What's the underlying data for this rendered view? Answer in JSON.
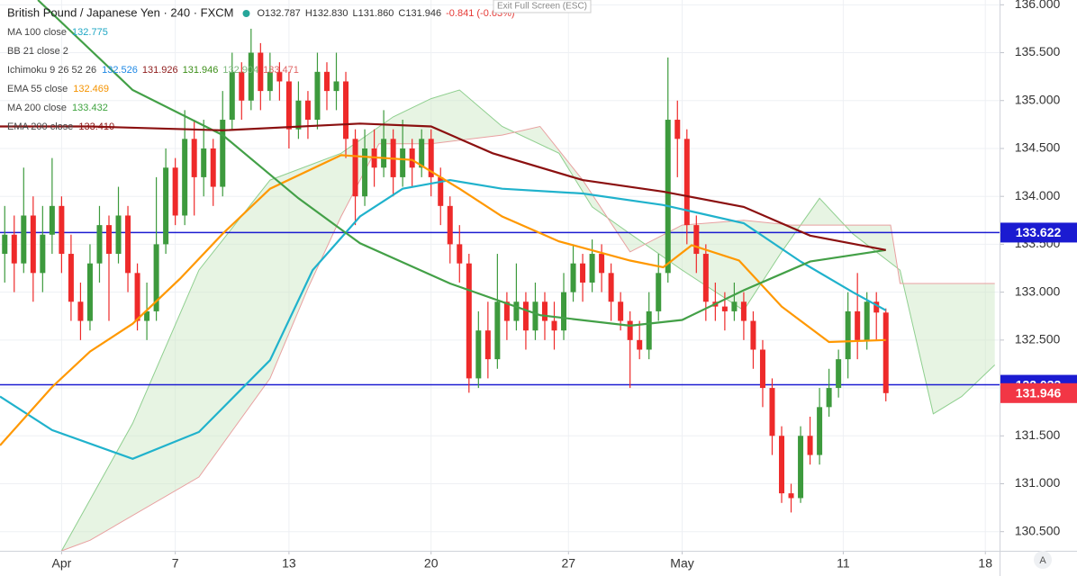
{
  "chart_data": {
    "type": "candlestick",
    "header": {
      "title": "British Pound / Japanese Yen · 240 · FXCM",
      "ohlc": [
        "O132.787",
        "H132.830",
        "L131.860",
        "C131.946"
      ],
      "change": "-0.841 (-0.63%)",
      "exit": "Exit Full Screen (ESC)"
    },
    "indicators": [
      {
        "label": "MA 100 close",
        "values": [
          {
            "text": "132.775",
            "color": "#1fa7c4"
          }
        ]
      },
      {
        "label": "BB 21 close 2",
        "values": []
      },
      {
        "label": "Ichimoku 9 26 52 26",
        "values": [
          {
            "text": "132.526",
            "color": "#1e88e5"
          },
          {
            "text": "131.926",
            "color": "#8e1b1b"
          },
          {
            "text": "131.946",
            "color": "#3d8f1a"
          },
          {
            "text": "132.904",
            "color": "#7cb87c"
          },
          {
            "text": "133.471",
            "color": "#e06666"
          }
        ]
      },
      {
        "label": "EMA 55 close",
        "values": [
          {
            "text": "132.469",
            "color": "#f59300"
          }
        ]
      },
      {
        "label": "MA 200 close",
        "values": [
          {
            "text": "133.432",
            "color": "#3fa33f"
          }
        ]
      },
      {
        "label": "EMA 200 close",
        "values": [
          {
            "text": "133.410",
            "color": "#8b1010"
          }
        ]
      }
    ],
    "xlim": [
      0,
      211
    ],
    "ylim": [
      130.3,
      136.05
    ],
    "xticks": [
      {
        "value": 13,
        "label": "Apr"
      },
      {
        "value": 37,
        "label": "7"
      },
      {
        "value": 61,
        "label": "13"
      },
      {
        "value": 91,
        "label": "20"
      },
      {
        "value": 120,
        "label": "27"
      },
      {
        "value": 144,
        "label": "May"
      },
      {
        "value": 178,
        "label": "11"
      },
      {
        "value": 208,
        "label": "18"
      }
    ],
    "yticks": [
      {
        "value": 130.5,
        "label": "130.500"
      },
      {
        "value": 131,
        "label": "131.000"
      },
      {
        "value": 131.5,
        "label": "131.500"
      },
      {
        "value": 132,
        "label": "132.000"
      },
      {
        "value": 132.5,
        "label": "132.500"
      },
      {
        "value": 133,
        "label": "133.000"
      },
      {
        "value": 133.5,
        "label": "133.500"
      },
      {
        "value": 134,
        "label": "134.000"
      },
      {
        "value": 134.5,
        "label": "134.500"
      },
      {
        "value": 135,
        "label": "135.000"
      },
      {
        "value": 135.5,
        "label": "135.500"
      },
      {
        "value": 136,
        "label": "136.000"
      }
    ],
    "grid": true,
    "up_color": "#3d9a3d",
    "down_color": "#ee2a2a",
    "candles": {
      "x": [
        1,
        3,
        5,
        7,
        9,
        11,
        13,
        15,
        17,
        19,
        21,
        23,
        25,
        27,
        29,
        31,
        33,
        35,
        37,
        39,
        41,
        43,
        45,
        47,
        49,
        51,
        53,
        55,
        57,
        59,
        61,
        63,
        65,
        67,
        69,
        71,
        73,
        75,
        77,
        79,
        81,
        83,
        85,
        87,
        89,
        91,
        93,
        95,
        97,
        99,
        101,
        103,
        105,
        107,
        109,
        111,
        113,
        115,
        117,
        119,
        121,
        123,
        125,
        127,
        129,
        131,
        133,
        135,
        137,
        139,
        141,
        143,
        145,
        147,
        149,
        151,
        153,
        155,
        157,
        159,
        161,
        163,
        165,
        167,
        169,
        171,
        173,
        175,
        177,
        179,
        181,
        183,
        185,
        187
      ],
      "ohlc": [
        [
          133.4,
          133.9,
          133.1,
          133.6
        ],
        [
          133.6,
          133.8,
          133.0,
          133.3
        ],
        [
          133.3,
          134.3,
          133.2,
          133.8
        ],
        [
          133.8,
          134.0,
          132.9,
          133.2
        ],
        [
          133.2,
          133.9,
          133.0,
          133.6
        ],
        [
          133.6,
          134.4,
          133.4,
          133.9
        ],
        [
          133.9,
          134.0,
          133.2,
          133.4
        ],
        [
          133.4,
          133.6,
          132.7,
          132.9
        ],
        [
          132.9,
          133.1,
          132.5,
          132.7
        ],
        [
          132.7,
          133.5,
          132.6,
          133.3
        ],
        [
          133.3,
          133.9,
          133.1,
          133.7
        ],
        [
          133.7,
          133.8,
          132.7,
          133.4
        ],
        [
          133.4,
          134.1,
          133.3,
          133.8
        ],
        [
          133.8,
          133.9,
          133.0,
          133.2
        ],
        [
          133.2,
          133.3,
          132.6,
          132.7
        ],
        [
          132.7,
          133.1,
          132.5,
          132.8
        ],
        [
          132.8,
          134.2,
          132.7,
          133.5
        ],
        [
          133.5,
          134.5,
          133.4,
          134.3
        ],
        [
          134.3,
          134.4,
          133.7,
          133.8
        ],
        [
          133.8,
          134.9,
          133.7,
          134.6
        ],
        [
          134.6,
          134.8,
          133.8,
          134.2
        ],
        [
          134.2,
          134.8,
          134.0,
          134.5
        ],
        [
          134.5,
          134.6,
          133.9,
          134.1
        ],
        [
          134.1,
          135.1,
          134.0,
          134.8
        ],
        [
          134.8,
          135.5,
          134.7,
          135.3
        ],
        [
          135.3,
          135.4,
          134.8,
          135.0
        ],
        [
          135.0,
          135.75,
          134.9,
          135.5
        ],
        [
          135.5,
          135.6,
          134.9,
          135.1
        ],
        [
          135.1,
          135.5,
          135.0,
          135.3
        ],
        [
          135.3,
          135.4,
          135.0,
          135.2
        ],
        [
          135.2,
          135.3,
          134.5,
          134.7
        ],
        [
          134.7,
          135.2,
          134.6,
          135.0
        ],
        [
          135.0,
          135.1,
          134.6,
          134.8
        ],
        [
          134.8,
          135.5,
          134.7,
          135.3
        ],
        [
          135.3,
          135.4,
          134.9,
          135.1
        ],
        [
          135.1,
          135.5,
          134.9,
          135.2
        ],
        [
          135.2,
          135.3,
          134.4,
          134.6
        ],
        [
          134.6,
          134.7,
          133.7,
          134.0
        ],
        [
          134.0,
          134.7,
          133.9,
          134.5
        ],
        [
          134.5,
          134.7,
          134.1,
          134.3
        ],
        [
          134.3,
          134.9,
          134.2,
          134.6
        ],
        [
          134.6,
          134.7,
          134.0,
          134.2
        ],
        [
          134.2,
          134.8,
          134.1,
          134.5
        ],
        [
          134.5,
          134.6,
          134.1,
          134.3
        ],
        [
          134.3,
          134.7,
          134.2,
          134.6
        ],
        [
          134.6,
          134.7,
          134.0,
          134.2
        ],
        [
          134.2,
          134.3,
          133.7,
          133.9
        ],
        [
          133.9,
          134.0,
          133.3,
          133.5
        ],
        [
          133.5,
          133.7,
          133.1,
          133.3
        ],
        [
          133.3,
          133.4,
          131.95,
          132.1
        ],
        [
          132.1,
          132.8,
          132.0,
          132.6
        ],
        [
          132.6,
          132.9,
          132.1,
          132.3
        ],
        [
          132.3,
          133.4,
          132.2,
          132.9
        ],
        [
          132.9,
          133.0,
          132.5,
          132.7
        ],
        [
          132.7,
          133.3,
          132.6,
          132.9
        ],
        [
          132.9,
          133.0,
          132.4,
          132.6
        ],
        [
          132.6,
          133.1,
          132.5,
          132.9
        ],
        [
          132.9,
          133.0,
          132.5,
          132.7
        ],
        [
          132.7,
          132.9,
          132.4,
          132.6
        ],
        [
          132.6,
          133.2,
          132.5,
          133.0
        ],
        [
          133.0,
          133.5,
          132.9,
          133.3
        ],
        [
          133.3,
          133.4,
          132.9,
          133.1
        ],
        [
          133.1,
          133.55,
          133.0,
          133.4
        ],
        [
          133.4,
          133.5,
          133.0,
          133.2
        ],
        [
          133.2,
          133.3,
          132.7,
          132.9
        ],
        [
          132.9,
          133.0,
          132.6,
          132.7
        ],
        [
          132.7,
          132.8,
          132.0,
          132.5
        ],
        [
          132.5,
          132.7,
          132.3,
          132.4
        ],
        [
          132.4,
          133.0,
          132.3,
          132.8
        ],
        [
          132.8,
          133.4,
          132.7,
          133.2
        ],
        [
          133.2,
          135.45,
          133.1,
          134.8
        ],
        [
          134.8,
          135.0,
          134.2,
          134.6
        ],
        [
          134.6,
          134.7,
          133.5,
          133.7
        ],
        [
          133.7,
          133.8,
          133.2,
          133.4
        ],
        [
          133.4,
          133.5,
          132.7,
          132.9
        ],
        [
          132.9,
          133.1,
          132.7,
          132.85
        ],
        [
          132.85,
          133.0,
          132.6,
          132.8
        ],
        [
          132.8,
          133.1,
          132.7,
          132.9
        ],
        [
          132.9,
          133.0,
          132.5,
          132.7
        ],
        [
          132.7,
          132.8,
          132.2,
          132.4
        ],
        [
          132.4,
          132.5,
          131.8,
          132.0
        ],
        [
          132.0,
          132.1,
          131.3,
          131.5
        ],
        [
          131.5,
          131.6,
          130.8,
          130.9
        ],
        [
          130.9,
          131.0,
          130.7,
          130.85
        ],
        [
          130.85,
          131.6,
          130.8,
          131.5
        ],
        [
          131.5,
          131.7,
          131.2,
          131.3
        ],
        [
          131.3,
          132.0,
          131.2,
          131.8
        ],
        [
          131.8,
          132.2,
          131.7,
          132.0
        ],
        [
          132.0,
          132.4,
          131.9,
          132.3
        ],
        [
          132.3,
          133.0,
          132.1,
          132.8
        ],
        [
          132.8,
          133.2,
          132.3,
          132.5
        ],
        [
          132.5,
          133.0,
          132.4,
          132.9
        ],
        [
          132.9,
          133.0,
          132.5,
          132.787
        ],
        [
          132.787,
          132.83,
          131.86,
          131.946
        ]
      ]
    },
    "lines": [
      {
        "name": "MA 100 close",
        "color": "#20b2cc",
        "x": [
          0,
          11,
          28,
          42,
          57,
          66,
          76,
          85,
          95,
          106,
          123,
          140,
          157,
          169,
          180,
          187
        ],
        "values": [
          131.91,
          131.56,
          131.26,
          131.54,
          132.29,
          133.23,
          133.79,
          134.08,
          134.17,
          134.08,
          134.03,
          133.91,
          133.72,
          133.32,
          133.0,
          132.81
        ]
      },
      {
        "name": "EMA 55 close",
        "color": "#ff9800",
        "x": [
          0,
          11,
          19,
          28,
          38,
          47,
          57,
          72,
          87,
          97,
          106,
          118,
          133,
          140,
          146,
          156,
          165,
          175,
          187
        ],
        "values": [
          131.4,
          132.01,
          132.38,
          132.67,
          133.14,
          133.61,
          134.08,
          134.43,
          134.38,
          134.08,
          133.79,
          133.53,
          133.33,
          133.26,
          133.49,
          133.33,
          132.85,
          132.48,
          132.5
        ]
      },
      {
        "name": "MA 200 close",
        "color": "#43a047",
        "x": [
          8,
          28,
          47,
          63,
          76,
          95,
          114,
          133,
          144,
          157,
          171,
          187
        ],
        "values": [
          136.05,
          135.11,
          134.64,
          133.98,
          133.51,
          133.09,
          132.76,
          132.65,
          132.71,
          133.02,
          133.32,
          133.44
        ]
      },
      {
        "name": "EMA 200 close",
        "color": "#8b1010",
        "x": [
          0,
          19,
          47,
          76,
          91,
          104,
          123,
          140,
          157,
          171,
          187
        ],
        "values": [
          134.73,
          134.73,
          134.69,
          134.76,
          134.73,
          134.45,
          134.17,
          134.05,
          133.89,
          133.59,
          133.44
        ]
      }
    ],
    "ichimoku": {
      "span_a": {
        "color": "#8fcf8f",
        "x": [
          13,
          28,
          42,
          57,
          72,
          83,
          91,
          97,
          106,
          118,
          125,
          133,
          144,
          157,
          165,
          173,
          180,
          190,
          197,
          203,
          210
        ],
        "values": [
          130.3,
          131.63,
          133.23,
          134.17,
          134.45,
          134.83,
          135.02,
          135.11,
          134.73,
          134.45,
          133.89,
          133.61,
          133.23,
          132.81,
          133.42,
          133.98,
          133.61,
          133.23,
          131.73,
          131.91,
          132.24
        ]
      },
      "span_b": {
        "color": "#e8a0a0",
        "x": [
          13,
          19,
          42,
          57,
          65,
          72,
          80,
          91,
          106,
          114,
          123,
          133,
          144,
          157,
          167,
          188,
          190,
          210
        ],
        "values": [
          130.3,
          130.41,
          131.07,
          132.1,
          133.04,
          133.79,
          134.55,
          134.55,
          134.64,
          134.73,
          134.17,
          133.42,
          133.7,
          133.75,
          133.7,
          133.7,
          133.09,
          133.09
        ]
      },
      "fill": "#c9e6c0"
    },
    "price_lines": [
      {
        "value": 133.622,
        "color": "#1b1bd1"
      },
      {
        "value": 132.033,
        "color": "#1b1bd1"
      }
    ],
    "last_price": {
      "value": 131.946,
      "color": "#f23645"
    }
  }
}
